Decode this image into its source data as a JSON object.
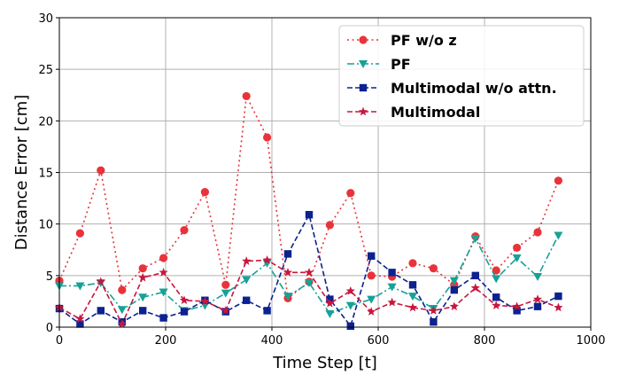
{
  "chart_data": {
    "type": "line",
    "xlabel": "Time Step [t]",
    "ylabel": "Distance Error [cm]",
    "xlim": [
      0,
      1000
    ],
    "ylim": [
      0,
      30
    ],
    "xticks": [
      0,
      200,
      400,
      600,
      800,
      1000
    ],
    "yticks": [
      0,
      5,
      10,
      15,
      20,
      25,
      30
    ],
    "grid": true,
    "legend_position": "top-right",
    "x": [
      0,
      39,
      78,
      118,
      157,
      196,
      235,
      274,
      313,
      352,
      391,
      430,
      470,
      509,
      548,
      587,
      626,
      665,
      704,
      743,
      783,
      822,
      861,
      900,
      939
    ],
    "series": [
      {
        "name": "PF w/o z",
        "color": "#e8333a",
        "marker": "circle",
        "line": "dotted",
        "values": [
          4.5,
          9.1,
          15.2,
          3.6,
          5.7,
          6.7,
          9.4,
          13.1,
          4.1,
          22.4,
          18.4,
          2.8,
          4.4,
          9.9,
          13.0,
          5.0,
          4.9,
          6.2,
          5.7,
          4.1,
          8.8,
          5.5,
          7.7,
          9.2,
          14.2
        ]
      },
      {
        "name": "PF",
        "color": "#17a198",
        "marker": "triangle-down",
        "line": "dashdot",
        "values": [
          4.0,
          4.0,
          4.3,
          1.7,
          2.9,
          3.4,
          1.6,
          2.1,
          3.3,
          4.6,
          6.2,
          3.0,
          4.3,
          1.3,
          2.1,
          2.7,
          3.9,
          3.0,
          1.8,
          4.5,
          8.6,
          4.7,
          6.7,
          4.9,
          8.9
        ]
      },
      {
        "name": "Multimodal w/o attn.",
        "color": "#0b228f",
        "marker": "square",
        "line": "dashed",
        "values": [
          1.8,
          0.3,
          1.6,
          0.5,
          1.6,
          0.9,
          1.5,
          2.6,
          1.5,
          2.6,
          1.6,
          7.1,
          10.9,
          2.7,
          0.1,
          6.9,
          5.3,
          4.1,
          0.5,
          3.6,
          5.0,
          2.9,
          1.6,
          2.0,
          3.0
        ]
      },
      {
        "name": "Multimodal",
        "color": "#c8163e",
        "marker": "star",
        "line": "dashed",
        "values": [
          1.9,
          0.8,
          4.4,
          0.3,
          4.8,
          5.3,
          2.6,
          2.5,
          1.6,
          6.4,
          6.5,
          5.3,
          5.3,
          2.3,
          3.5,
          1.5,
          2.4,
          1.9,
          1.6,
          2.0,
          3.8,
          2.1,
          2.0,
          2.7,
          1.9
        ]
      }
    ]
  }
}
